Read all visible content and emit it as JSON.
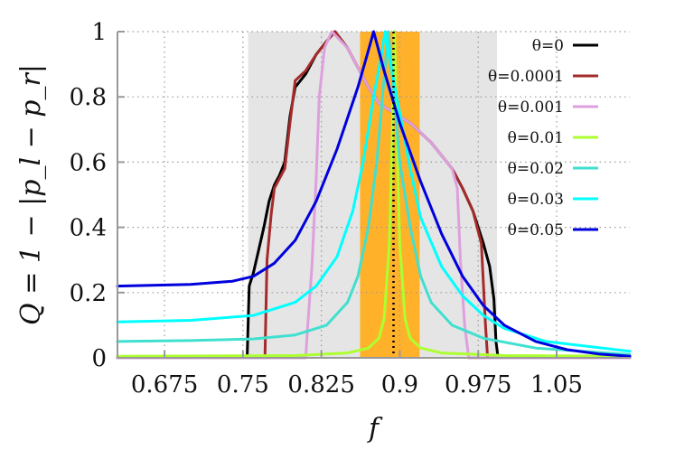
{
  "chart_data": {
    "type": "line",
    "xlabel": "f",
    "ylabel": "Q = 1 − |p_l − p_r|",
    "xlim": [
      0.63,
      1.12
    ],
    "ylim": [
      0,
      1
    ],
    "x_ticks": [
      "0.675",
      "0.75",
      "0.825",
      "0.9",
      "0.975",
      "1.05"
    ],
    "y_ticks": [
      "0",
      "0.2",
      "0.4",
      "0.6",
      "0.8",
      "1"
    ],
    "grid": true,
    "legend_position": "top-right",
    "shaded_regions": [
      {
        "x": [
          0.755,
          0.993
        ],
        "color": "#e5e5e5"
      },
      {
        "x": [
          0.862,
          0.919
        ],
        "color": "#ffb12a"
      }
    ],
    "vertical_line": {
      "x": 0.894,
      "style": "dotted",
      "color": "#000000"
    },
    "series": [
      {
        "name": "θ=0",
        "color": "#000000",
        "points": [
          [
            0.63,
            0.0
          ],
          [
            0.754,
            0.0
          ],
          [
            0.756,
            0.22
          ],
          [
            0.76,
            0.26
          ],
          [
            0.765,
            0.33
          ],
          [
            0.77,
            0.4
          ],
          [
            0.775,
            0.48
          ],
          [
            0.78,
            0.53
          ],
          [
            0.785,
            0.56
          ],
          [
            0.79,
            0.6
          ],
          [
            0.795,
            0.74
          ],
          [
            0.8,
            0.83
          ],
          [
            0.81,
            0.87
          ],
          [
            0.82,
            0.93
          ],
          [
            0.83,
            0.97
          ],
          [
            0.838,
            1.0
          ],
          [
            0.85,
            0.95
          ],
          [
            0.86,
            0.89
          ],
          [
            0.87,
            0.83
          ],
          [
            0.88,
            0.78
          ],
          [
            0.89,
            0.76
          ],
          [
            0.9,
            0.74
          ],
          [
            0.91,
            0.72
          ],
          [
            0.93,
            0.66
          ],
          [
            0.95,
            0.58
          ],
          [
            0.96,
            0.52
          ],
          [
            0.97,
            0.45
          ],
          [
            0.98,
            0.35
          ],
          [
            0.986,
            0.28
          ],
          [
            0.99,
            0.18
          ],
          [
            0.992,
            0.05
          ],
          [
            0.994,
            0.0
          ],
          [
            1.12,
            0.0
          ]
        ]
      },
      {
        "name": "θ=0.0001",
        "color": "#a52a2a",
        "points": [
          [
            0.63,
            0.0
          ],
          [
            0.771,
            0.0
          ],
          [
            0.773,
            0.3
          ],
          [
            0.777,
            0.44
          ],
          [
            0.78,
            0.52
          ],
          [
            0.79,
            0.58
          ],
          [
            0.795,
            0.72
          ],
          [
            0.8,
            0.85
          ],
          [
            0.81,
            0.88
          ],
          [
            0.82,
            0.93
          ],
          [
            0.83,
            0.97
          ],
          [
            0.838,
            1.0
          ],
          [
            0.85,
            0.95
          ],
          [
            0.86,
            0.89
          ],
          [
            0.87,
            0.83
          ],
          [
            0.88,
            0.78
          ],
          [
            0.89,
            0.76
          ],
          [
            0.9,
            0.74
          ],
          [
            0.91,
            0.72
          ],
          [
            0.93,
            0.66
          ],
          [
            0.95,
            0.58
          ],
          [
            0.96,
            0.52
          ],
          [
            0.97,
            0.45
          ],
          [
            0.978,
            0.35
          ],
          [
            0.982,
            0.1
          ],
          [
            0.984,
            0.0
          ],
          [
            1.12,
            0.0
          ]
        ]
      },
      {
        "name": "θ=0.001",
        "color": "#dda0dd",
        "points": [
          [
            0.63,
            0.0
          ],
          [
            0.81,
            0.0
          ],
          [
            0.812,
            0.1
          ],
          [
            0.816,
            0.28
          ],
          [
            0.82,
            0.55
          ],
          [
            0.823,
            0.8
          ],
          [
            0.828,
            0.95
          ],
          [
            0.835,
            1.0
          ],
          [
            0.85,
            0.95
          ],
          [
            0.86,
            0.89
          ],
          [
            0.87,
            0.83
          ],
          [
            0.88,
            0.78
          ],
          [
            0.89,
            0.76
          ],
          [
            0.9,
            0.74
          ],
          [
            0.91,
            0.72
          ],
          [
            0.93,
            0.66
          ],
          [
            0.95,
            0.58
          ],
          [
            0.955,
            0.52
          ],
          [
            0.958,
            0.3
          ],
          [
            0.962,
            0.1
          ],
          [
            0.966,
            0.0
          ],
          [
            1.12,
            0.0
          ]
        ]
      },
      {
        "name": "θ=0.01",
        "color": "#adff2f",
        "points": [
          [
            0.63,
            0.005
          ],
          [
            0.8,
            0.007
          ],
          [
            0.85,
            0.015
          ],
          [
            0.87,
            0.03
          ],
          [
            0.88,
            0.06
          ],
          [
            0.885,
            0.12
          ],
          [
            0.89,
            0.35
          ],
          [
            0.893,
            0.7
          ],
          [
            0.895,
            1.0
          ],
          [
            0.897,
            0.7
          ],
          [
            0.9,
            0.35
          ],
          [
            0.905,
            0.12
          ],
          [
            0.91,
            0.06
          ],
          [
            0.92,
            0.03
          ],
          [
            0.94,
            0.015
          ],
          [
            1.0,
            0.007
          ],
          [
            1.12,
            0.005
          ]
        ]
      },
      {
        "name": "θ=0.02",
        "color": "#40e0d0",
        "points": [
          [
            0.63,
            0.05
          ],
          [
            0.7,
            0.053
          ],
          [
            0.76,
            0.058
          ],
          [
            0.8,
            0.07
          ],
          [
            0.83,
            0.1
          ],
          [
            0.85,
            0.17
          ],
          [
            0.86,
            0.25
          ],
          [
            0.87,
            0.4
          ],
          [
            0.878,
            0.6
          ],
          [
            0.884,
            0.82
          ],
          [
            0.889,
            1.0
          ],
          [
            0.894,
            0.82
          ],
          [
            0.9,
            0.6
          ],
          [
            0.91,
            0.4
          ],
          [
            0.92,
            0.25
          ],
          [
            0.93,
            0.17
          ],
          [
            0.95,
            0.1
          ],
          [
            0.98,
            0.06
          ],
          [
            1.03,
            0.03
          ],
          [
            1.12,
            0.01
          ]
        ]
      },
      {
        "name": "θ=0.03",
        "color": "#00ffff",
        "points": [
          [
            0.63,
            0.11
          ],
          [
            0.7,
            0.115
          ],
          [
            0.76,
            0.13
          ],
          [
            0.8,
            0.17
          ],
          [
            0.82,
            0.22
          ],
          [
            0.84,
            0.31
          ],
          [
            0.855,
            0.45
          ],
          [
            0.865,
            0.6
          ],
          [
            0.875,
            0.8
          ],
          [
            0.882,
            0.92
          ],
          [
            0.886,
            1.0
          ],
          [
            0.89,
            0.92
          ],
          [
            0.9,
            0.75
          ],
          [
            0.91,
            0.58
          ],
          [
            0.92,
            0.43
          ],
          [
            0.94,
            0.28
          ],
          [
            0.96,
            0.19
          ],
          [
            0.98,
            0.13
          ],
          [
            1.0,
            0.09
          ],
          [
            1.04,
            0.05
          ],
          [
            1.12,
            0.02
          ]
        ]
      },
      {
        "name": "θ=0.05",
        "color": "#0000dd",
        "points": [
          [
            0.63,
            0.22
          ],
          [
            0.7,
            0.225
          ],
          [
            0.74,
            0.235
          ],
          [
            0.76,
            0.25
          ],
          [
            0.78,
            0.29
          ],
          [
            0.8,
            0.36
          ],
          [
            0.82,
            0.48
          ],
          [
            0.84,
            0.64
          ],
          [
            0.86,
            0.83
          ],
          [
            0.868,
            0.92
          ],
          [
            0.875,
            1.0
          ],
          [
            0.885,
            0.88
          ],
          [
            0.9,
            0.72
          ],
          [
            0.92,
            0.54
          ],
          [
            0.94,
            0.38
          ],
          [
            0.96,
            0.25
          ],
          [
            0.98,
            0.16
          ],
          [
            1.0,
            0.1
          ],
          [
            1.03,
            0.05
          ],
          [
            1.06,
            0.025
          ],
          [
            1.09,
            0.012
          ],
          [
            1.12,
            0.005
          ]
        ]
      }
    ]
  }
}
